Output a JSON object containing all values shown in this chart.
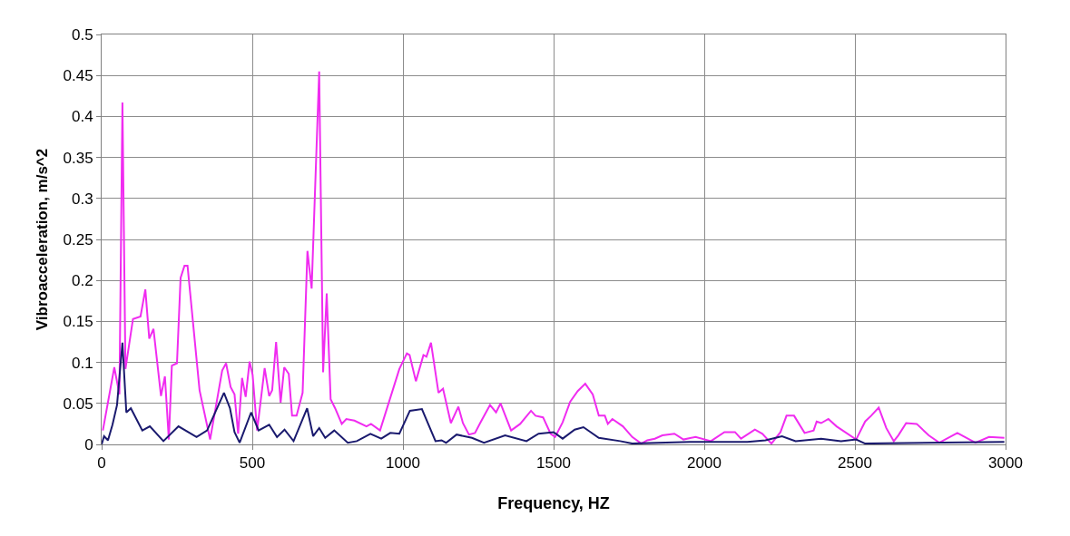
{
  "chart_data": {
    "type": "line",
    "xlabel": "Frequency, HZ",
    "ylabel": "Vibroacceleration, m/s^2",
    "xlim": [
      0,
      3000
    ],
    "xticks": [
      0,
      500,
      1000,
      1500,
      2000,
      2500,
      3000
    ],
    "ylim": [
      0,
      0.5
    ],
    "yticks": [
      0,
      0.05,
      0.1,
      0.15,
      0.2,
      0.25,
      0.3,
      0.35,
      0.4,
      0.45,
      0.5
    ],
    "grid": true,
    "marker": "none",
    "line_style": "solid",
    "series": [
      {
        "color": "#f02cf0",
        "x": [
          4,
          42,
          59,
          69,
          79,
          104,
          129,
          145,
          158,
          172,
          197,
          210,
          223,
          233,
          250,
          262,
          275,
          285,
          325,
          360,
          400,
          413,
          428,
          441,
          453,
          466,
          478,
          491,
          501,
          516,
          541,
          556,
          566,
          579,
          594,
          606,
          621,
          632,
          647,
          667,
          683,
          697,
          722,
          735,
          747,
          760,
          775,
          797,
          812,
          839,
          879,
          894,
          924,
          988,
          1013,
          1022,
          1043,
          1068,
          1078,
          1093,
          1118,
          1133,
          1159,
          1184,
          1199,
          1219,
          1239,
          1259,
          1289,
          1309,
          1324,
          1359,
          1389,
          1425,
          1440,
          1465,
          1490,
          1505,
          1530,
          1555,
          1580,
          1605,
          1630,
          1650,
          1670,
          1680,
          1695,
          1730,
          1761,
          1791,
          1811,
          1836,
          1861,
          1901,
          1931,
          1971,
          2022,
          2067,
          2102,
          2122,
          2168,
          2193,
          2223,
          2253,
          2273,
          2298,
          2333,
          2363,
          2373,
          2388,
          2412,
          2439,
          2504,
          2534,
          2554,
          2579,
          2604,
          2629,
          2644,
          2670,
          2705,
          2745,
          2780,
          2840,
          2900,
          2945,
          2996
        ],
        "values": [
          0.017,
          0.094,
          0.061,
          0.417,
          0.092,
          0.153,
          0.156,
          0.189,
          0.129,
          0.141,
          0.059,
          0.083,
          0.006,
          0.096,
          0.099,
          0.203,
          0.218,
          0.218,
          0.066,
          0.006,
          0.09,
          0.099,
          0.07,
          0.061,
          0.013,
          0.081,
          0.058,
          0.101,
          0.085,
          0.017,
          0.093,
          0.059,
          0.066,
          0.125,
          0.051,
          0.094,
          0.086,
          0.035,
          0.035,
          0.063,
          0.236,
          0.19,
          0.455,
          0.088,
          0.184,
          0.055,
          0.044,
          0.025,
          0.031,
          0.029,
          0.022,
          0.025,
          0.017,
          0.092,
          0.111,
          0.109,
          0.077,
          0.109,
          0.107,
          0.124,
          0.063,
          0.068,
          0.026,
          0.046,
          0.026,
          0.012,
          0.014,
          0.028,
          0.048,
          0.039,
          0.05,
          0.017,
          0.025,
          0.041,
          0.035,
          0.033,
          0.013,
          0.009,
          0.027,
          0.052,
          0.065,
          0.074,
          0.061,
          0.035,
          0.035,
          0.025,
          0.031,
          0.022,
          0.009,
          0.001,
          0.005,
          0.007,
          0.011,
          0.013,
          0.006,
          0.009,
          0.004,
          0.015,
          0.015,
          0.007,
          0.018,
          0.013,
          0.001,
          0.015,
          0.035,
          0.035,
          0.014,
          0.017,
          0.028,
          0.026,
          0.031,
          0.022,
          0.006,
          0.028,
          0.035,
          0.045,
          0.02,
          0.004,
          0.011,
          0.026,
          0.025,
          0.011,
          0.002,
          0.014,
          0.002,
          0.009,
          0.008
        ]
      },
      {
        "color": "#1a1a6e",
        "x": [
          0,
          8,
          21,
          36,
          51,
          69,
          82,
          97,
          135,
          160,
          205,
          255,
          315,
          350,
          406,
          426,
          441,
          458,
          496,
          521,
          556,
          582,
          607,
          637,
          682,
          702,
          722,
          742,
          772,
          817,
          847,
          892,
          928,
          958,
          988,
          1023,
          1063,
          1108,
          1128,
          1143,
          1178,
          1229,
          1269,
          1339,
          1410,
          1450,
          1500,
          1530,
          1570,
          1599,
          1650,
          1721,
          1761,
          1952,
          2143,
          2203,
          2258,
          2303,
          2388,
          2454,
          2504,
          2534,
          2996
        ],
        "values": [
          0,
          0.01,
          0.005,
          0.024,
          0.048,
          0.124,
          0.039,
          0.044,
          0.017,
          0.022,
          0.004,
          0.022,
          0.009,
          0.017,
          0.063,
          0.044,
          0.015,
          0.002,
          0.039,
          0.017,
          0.024,
          0.009,
          0.018,
          0.004,
          0.044,
          0.01,
          0.02,
          0.008,
          0.017,
          0.002,
          0.004,
          0.013,
          0.007,
          0.014,
          0.013,
          0.041,
          0.043,
          0.004,
          0.005,
          0.002,
          0.012,
          0.008,
          0.002,
          0.011,
          0.004,
          0.013,
          0.015,
          0.007,
          0.018,
          0.021,
          0.008,
          0.004,
          0.001,
          0.003,
          0.003,
          0.005,
          0.01,
          0.004,
          0.007,
          0.004,
          0.006,
          0.001,
          0.003
        ]
      }
    ]
  }
}
